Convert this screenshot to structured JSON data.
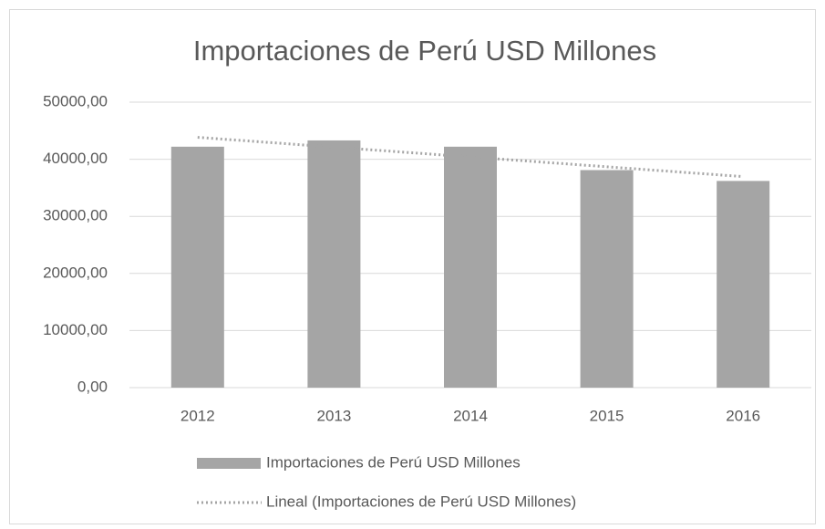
{
  "chart_data": {
    "type": "bar",
    "title": "Importaciones de Perú USD Millones",
    "categories": [
      "2012",
      "2013",
      "2014",
      "2015",
      "2016"
    ],
    "series": [
      {
        "name": "Importaciones de Perú USD Millones",
        "color": "#a5a5a5",
        "values": [
          42200,
          43300,
          42200,
          38100,
          36200
        ]
      },
      {
        "name": "Lineal (Importaciones de Perú USD Millones)",
        "color": "#a5a5a5",
        "type": "line",
        "values": [
          43840,
          42120,
          40400,
          38680,
          36960
        ]
      }
    ],
    "ylim": [
      0,
      50000
    ],
    "yticks": [
      {
        "value": 0,
        "label": "0,00"
      },
      {
        "value": 10000,
        "label": "10000,00"
      },
      {
        "value": 20000,
        "label": "20000,00"
      },
      {
        "value": 30000,
        "label": "30000,00"
      },
      {
        "value": 40000,
        "label": "40000,00"
      },
      {
        "value": 50000,
        "label": "50000,00"
      }
    ],
    "grid": true,
    "legend": "bottom"
  }
}
